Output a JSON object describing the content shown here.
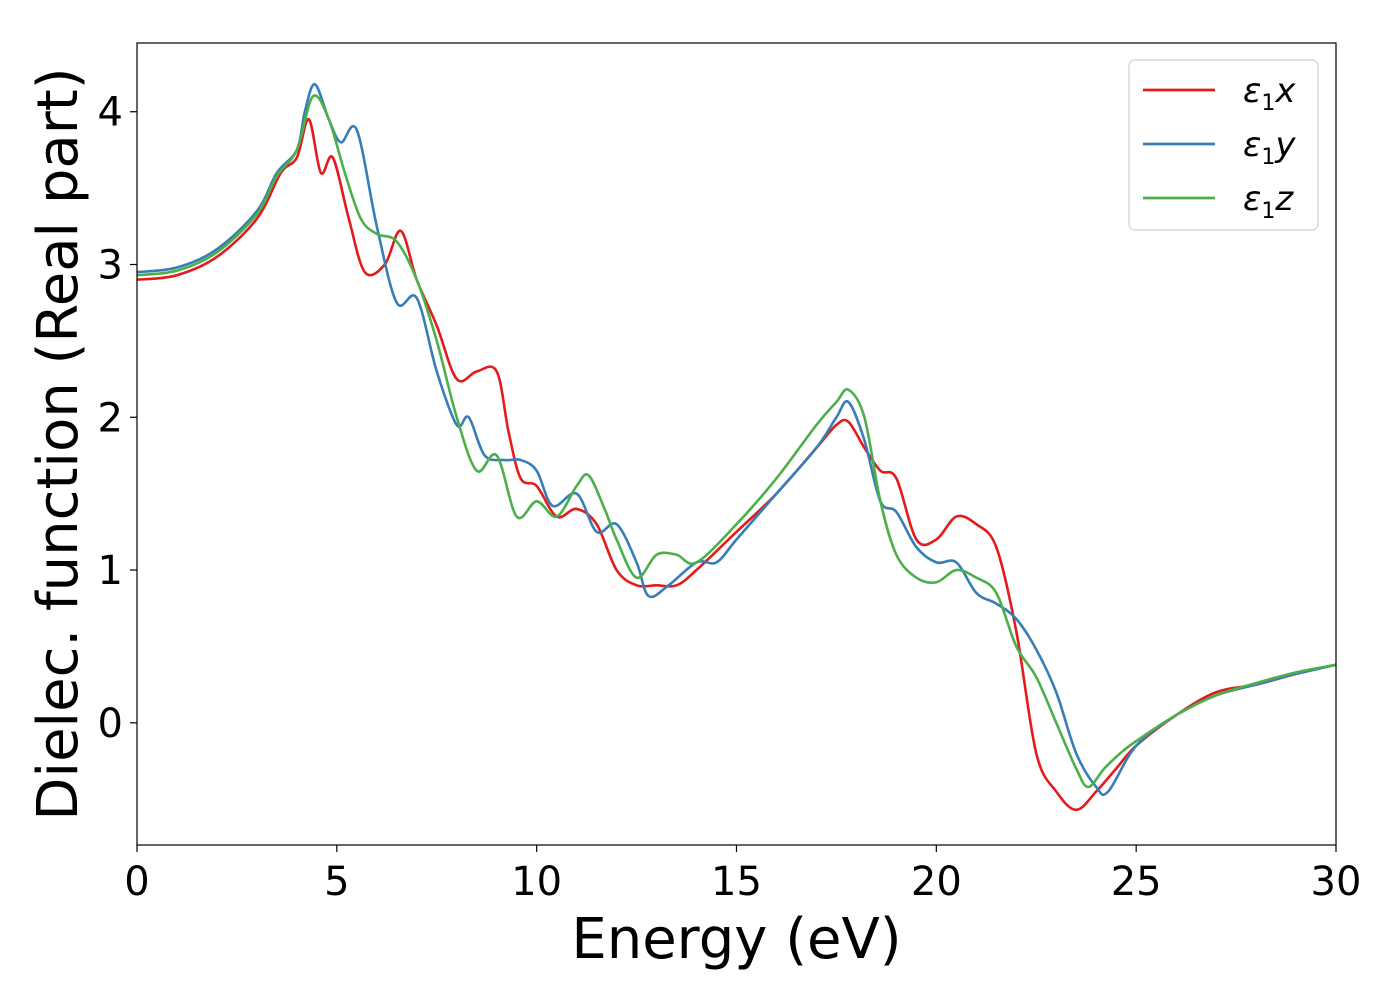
{
  "chart_data": {
    "type": "line",
    "xlabel": "Energy (eV)",
    "ylabel": "Dielec. function (Real part)",
    "xlim": [
      0,
      30
    ],
    "ylim": [
      -0.8,
      4.45
    ],
    "xticks": [
      0,
      5,
      10,
      15,
      20,
      25,
      30
    ],
    "yticks": [
      0,
      1,
      2,
      3,
      4
    ],
    "grid": false,
    "legend_position": "top-right",
    "series": [
      {
        "name": "ε1x",
        "legend_main": "ε",
        "legend_sub": "1",
        "legend_suffix": "x",
        "color": "#e41a1c",
        "x": [
          0,
          1,
          2,
          3,
          3.6,
          4.0,
          4.3,
          4.6,
          4.9,
          5.3,
          5.7,
          6.2,
          6.6,
          7.0,
          7.5,
          8.0,
          8.5,
          9.0,
          9.3,
          9.6,
          10.0,
          10.5,
          11.0,
          11.5,
          12.0,
          12.5,
          13.0,
          13.5,
          14.0,
          15.0,
          16.0,
          17.0,
          17.5,
          17.8,
          18.2,
          18.6,
          19.0,
          19.5,
          20.0,
          20.5,
          21.0,
          21.5,
          22.0,
          22.5,
          23.0,
          23.5,
          24.0,
          24.5,
          25.0,
          26.0,
          27.0,
          28.0,
          29.0,
          30.0
        ],
        "values": [
          2.9,
          2.93,
          3.05,
          3.3,
          3.6,
          3.7,
          3.95,
          3.6,
          3.7,
          3.3,
          2.95,
          3.0,
          3.22,
          2.9,
          2.6,
          2.25,
          2.3,
          2.3,
          1.9,
          1.6,
          1.55,
          1.35,
          1.4,
          1.3,
          1.0,
          0.9,
          0.9,
          0.9,
          1.0,
          1.25,
          1.5,
          1.8,
          1.95,
          1.97,
          1.8,
          1.65,
          1.6,
          1.2,
          1.2,
          1.35,
          1.3,
          1.15,
          0.6,
          -0.2,
          -0.45,
          -0.57,
          -0.45,
          -0.3,
          -0.15,
          0.05,
          0.2,
          0.25,
          0.32,
          0.38
        ]
      },
      {
        "name": "ε1y",
        "legend_main": "ε",
        "legend_sub": "1",
        "legend_suffix": "y",
        "color": "#377eb8",
        "x": [
          0,
          1,
          2,
          3,
          3.5,
          4.0,
          4.2,
          4.45,
          4.8,
          5.1,
          5.5,
          6.0,
          6.5,
          7.0,
          7.5,
          8.0,
          8.3,
          8.7,
          9.2,
          9.6,
          10.0,
          10.4,
          11.0,
          11.5,
          12.0,
          12.5,
          12.8,
          13.3,
          14.0,
          14.5,
          15.0,
          16.0,
          17.0,
          17.5,
          17.8,
          18.2,
          18.6,
          19.0,
          19.5,
          20.0,
          20.5,
          21.0,
          21.5,
          22.0,
          22.5,
          23.0,
          23.5,
          24.0,
          24.3,
          25.0,
          26.0,
          27.0,
          28.0,
          29.0,
          30.0
        ],
        "values": [
          2.95,
          2.98,
          3.1,
          3.35,
          3.6,
          3.75,
          4.0,
          4.18,
          3.95,
          3.8,
          3.88,
          3.25,
          2.75,
          2.78,
          2.3,
          1.95,
          2.0,
          1.75,
          1.72,
          1.72,
          1.65,
          1.42,
          1.5,
          1.25,
          1.3,
          1.05,
          0.83,
          0.9,
          1.05,
          1.05,
          1.2,
          1.5,
          1.8,
          2.0,
          2.1,
          1.85,
          1.45,
          1.38,
          1.15,
          1.05,
          1.05,
          0.85,
          0.78,
          0.68,
          0.48,
          0.2,
          -0.2,
          -0.42,
          -0.45,
          -0.15,
          0.05,
          0.18,
          0.25,
          0.32,
          0.38
        ]
      },
      {
        "name": "ε1z",
        "legend_main": "ε",
        "legend_sub": "1",
        "legend_suffix": "z",
        "color": "#4daf4a",
        "x": [
          0,
          1,
          2,
          3,
          3.5,
          4.0,
          4.4,
          4.8,
          5.2,
          5.6,
          6.0,
          6.5,
          7.0,
          7.5,
          8.0,
          8.5,
          9.0,
          9.5,
          10.0,
          10.5,
          11.0,
          11.3,
          11.7,
          12.0,
          12.5,
          13.0,
          13.5,
          14.0,
          15.0,
          16.0,
          17.0,
          17.5,
          17.8,
          18.2,
          18.6,
          19.0,
          19.5,
          20.0,
          20.5,
          21.0,
          21.5,
          22.0,
          22.5,
          23.0,
          23.5,
          23.8,
          24.2,
          24.6,
          25.0,
          26.0,
          27.0,
          28.0,
          29.0,
          30.0
        ],
        "values": [
          2.93,
          2.96,
          3.08,
          3.33,
          3.58,
          3.75,
          4.1,
          3.95,
          3.6,
          3.3,
          3.2,
          3.15,
          2.9,
          2.5,
          2.0,
          1.65,
          1.75,
          1.35,
          1.45,
          1.35,
          1.55,
          1.62,
          1.4,
          1.2,
          0.95,
          1.1,
          1.1,
          1.05,
          1.3,
          1.6,
          1.95,
          2.1,
          2.18,
          2.0,
          1.45,
          1.1,
          0.95,
          0.92,
          1.0,
          0.95,
          0.85,
          0.5,
          0.3,
          0.0,
          -0.3,
          -0.42,
          -0.3,
          -0.2,
          -0.12,
          0.05,
          0.18,
          0.26,
          0.33,
          0.38
        ]
      }
    ]
  }
}
